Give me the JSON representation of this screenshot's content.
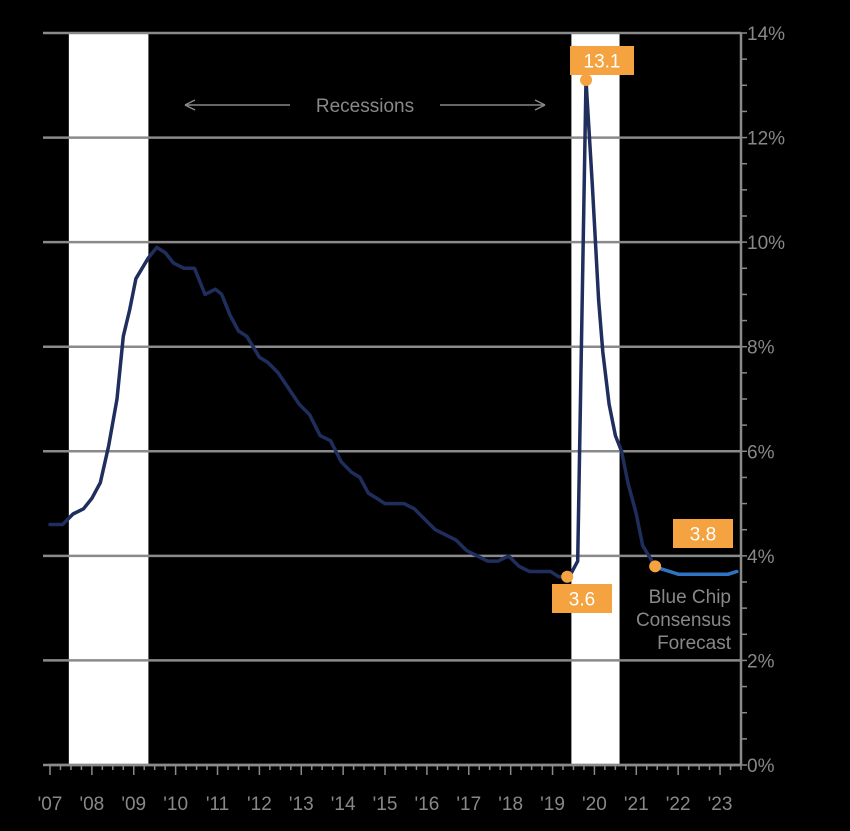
{
  "chart_data": {
    "type": "line",
    "title": "",
    "xlabel": "",
    "ylabel": "",
    "ylim": [
      0,
      14
    ],
    "xlim": [
      2007.0,
      2023.5
    ],
    "x_ticks": [
      {
        "value": 2007.0,
        "label": "'07"
      },
      {
        "value": 2008.0,
        "label": "'08"
      },
      {
        "value": 2009.0,
        "label": "'09"
      },
      {
        "value": 2010.0,
        "label": "'10"
      },
      {
        "value": 2011.0,
        "label": "'11"
      },
      {
        "value": 2012.0,
        "label": "'12"
      },
      {
        "value": 2013.0,
        "label": "'13"
      },
      {
        "value": 2014.0,
        "label": "'14"
      },
      {
        "value": 2015.0,
        "label": "'15"
      },
      {
        "value": 2016.0,
        "label": "'16"
      },
      {
        "value": 2017.0,
        "label": "'17"
      },
      {
        "value": 2018.0,
        "label": "'18"
      },
      {
        "value": 2019.0,
        "label": "'19"
      },
      {
        "value": 2020.0,
        "label": "'20"
      },
      {
        "value": 2021.0,
        "label": "'21"
      },
      {
        "value": 2022.0,
        "label": "'22"
      },
      {
        "value": 2023.0,
        "label": "'23"
      }
    ],
    "y_ticks": [
      {
        "value": 0,
        "label": "0%"
      },
      {
        "value": 2,
        "label": "2%"
      },
      {
        "value": 4,
        "label": "4%"
      },
      {
        "value": 6,
        "label": "6%"
      },
      {
        "value": 8,
        "label": "8%"
      },
      {
        "value": 10,
        "label": "10%"
      },
      {
        "value": 12,
        "label": "12%"
      },
      {
        "value": 14,
        "label": "14%"
      }
    ],
    "grid": true,
    "recessions": [
      {
        "start": 2007.45,
        "end": 2009.35
      },
      {
        "start": 2019.45,
        "end": 2020.6
      }
    ],
    "recession_annotation": "Recessions",
    "series": [
      {
        "name": "",
        "color": "#1f2e5c",
        "x": [
          2007.0,
          2007.3,
          2007.55,
          2007.8,
          2008.0,
          2008.2,
          2008.4,
          2008.6,
          2008.75,
          2008.9,
          2009.05,
          2009.2,
          2009.35,
          2009.55,
          2009.75,
          2009.95,
          2010.2,
          2010.45,
          2010.7,
          2010.95,
          2011.1,
          2011.3,
          2011.5,
          2011.7,
          2011.85,
          2012.0,
          2012.2,
          2012.45,
          2012.7,
          2012.95,
          2013.2,
          2013.45,
          2013.7,
          2013.95,
          2014.2,
          2014.4,
          2014.6,
          2014.8,
          2015.0,
          2015.2,
          2015.45,
          2015.7,
          2015.95,
          2016.2,
          2016.45,
          2016.7,
          2016.95,
          2017.2,
          2017.45,
          2017.7,
          2017.95,
          2018.2,
          2018.45,
          2018.7,
          2018.95,
          2019.15,
          2019.4,
          2019.6,
          2019.8,
          2019.95,
          2020.1,
          2020.2,
          2020.35,
          2020.5,
          2020.65,
          2020.8,
          2021.0,
          2021.15,
          2021.3,
          2021.45
        ],
        "y": [
          4.6,
          4.6,
          4.8,
          4.9,
          5.1,
          5.4,
          6.1,
          7.0,
          8.2,
          8.7,
          9.3,
          9.5,
          9.7,
          9.9,
          9.8,
          9.6,
          9.5,
          9.5,
          9.0,
          9.1,
          9.0,
          8.6,
          8.3,
          8.2,
          8.0,
          7.8,
          7.7,
          7.5,
          7.2,
          6.9,
          6.7,
          6.3,
          6.2,
          5.8,
          5.6,
          5.5,
          5.2,
          5.1,
          5.0,
          5.0,
          5.0,
          4.9,
          4.7,
          4.5,
          4.4,
          4.3,
          4.1,
          4.0,
          3.9,
          3.9,
          4.0,
          3.8,
          3.7,
          3.7,
          3.7,
          3.6,
          3.6,
          3.9,
          13.1,
          11.1,
          8.9,
          7.9,
          6.9,
          6.3,
          6.0,
          5.4,
          4.8,
          4.2,
          4.0,
          3.8
        ]
      },
      {
        "name": "Blue Chip Consensus Forecast",
        "color": "#2f74c0",
        "x": [
          2021.45,
          2021.6,
          2021.8,
          2022.0,
          2022.3,
          2022.6,
          2022.9,
          2023.2,
          2023.4
        ],
        "y": [
          3.8,
          3.75,
          3.7,
          3.65,
          3.65,
          3.65,
          3.65,
          3.65,
          3.7
        ]
      }
    ],
    "callouts": [
      {
        "label": "13.1",
        "x": 2019.8,
        "y": 13.1
      },
      {
        "label": "3.6",
        "x": 2019.35,
        "y": 3.6
      },
      {
        "label": "3.8",
        "x": 2021.45,
        "y": 3.8
      }
    ],
    "forecast_label": [
      "Blue Chip",
      "Consensus",
      "Forecast"
    ],
    "colors": {
      "background": "#000000",
      "gridline": "#8a8a8a",
      "recession_band": "#ffffff",
      "actual_line": "#1f2e5c",
      "forecast_line": "#2f74c0",
      "callout": "#f4a340",
      "text": "#888888"
    }
  }
}
